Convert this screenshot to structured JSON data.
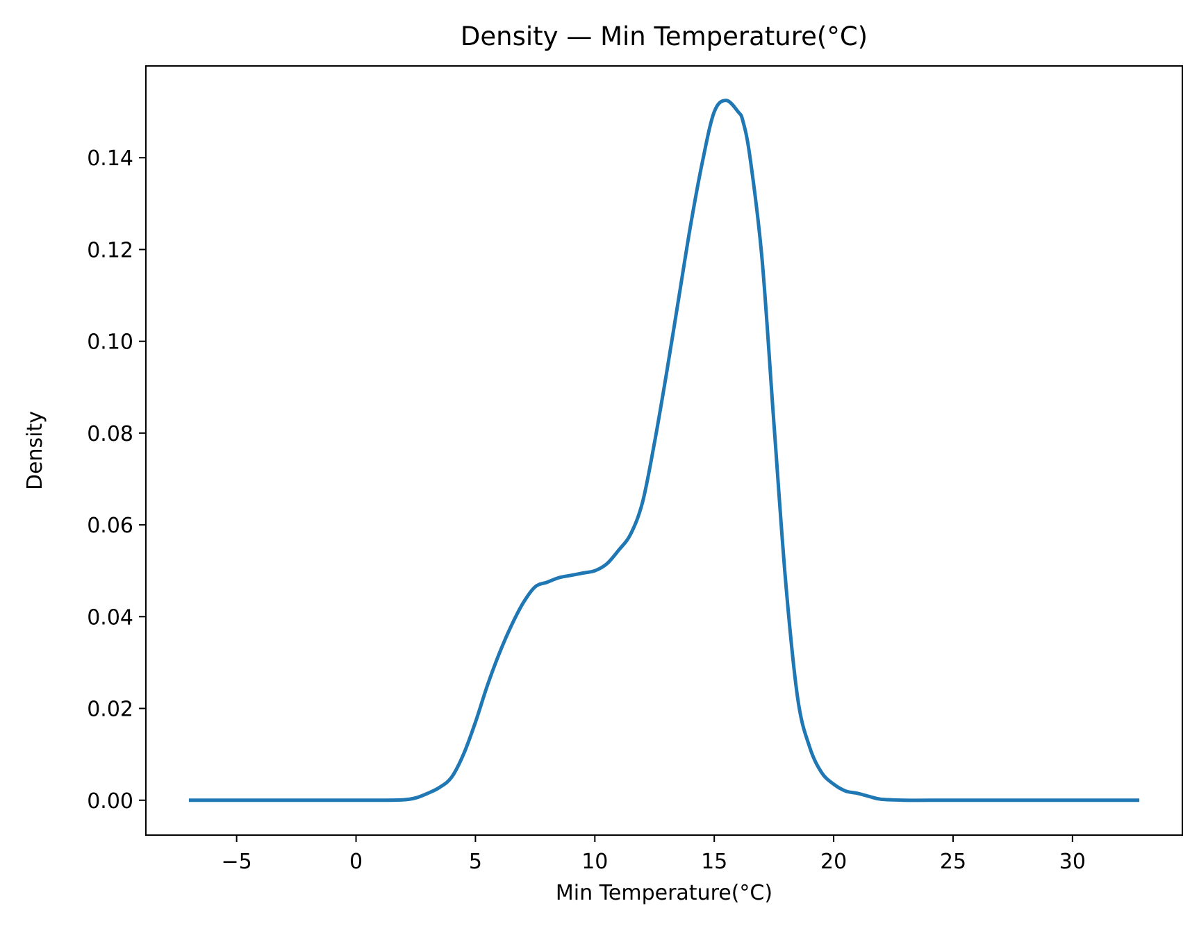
{
  "chart_data": {
    "type": "line",
    "title": "Density — Min Temperature(°C)",
    "xlabel": "Min Temperature(°C)",
    "ylabel": "Density",
    "xlim": [
      -8.8,
      34.6
    ],
    "ylim": [
      -0.0076,
      0.16
    ],
    "x_ticks": [
      -5,
      0,
      5,
      10,
      15,
      20,
      25,
      30
    ],
    "x_tick_labels": [
      "−5",
      "0",
      "5",
      "10",
      "15",
      "20",
      "25",
      "30"
    ],
    "y_ticks": [
      0.0,
      0.02,
      0.04,
      0.06,
      0.08,
      0.1,
      0.12,
      0.14
    ],
    "y_tick_labels": [
      "0.00",
      "0.02",
      "0.04",
      "0.06",
      "0.08",
      "0.10",
      "0.12",
      "0.14"
    ],
    "grid": false,
    "legend": "none",
    "series": [
      {
        "color": "#1f77b4",
        "x": [
          -7.0,
          -5,
          -2,
          0,
          1,
          2,
          2.5,
          3,
          3.5,
          4,
          4.5,
          5,
          5.5,
          6,
          6.5,
          7,
          7.5,
          8,
          8.5,
          9,
          9.5,
          10,
          10.5,
          11,
          11.5,
          12,
          12.5,
          13,
          13.5,
          14,
          14.5,
          15,
          15.5,
          16,
          16.2,
          16.5,
          17,
          17.5,
          18,
          18.5,
          19,
          19.5,
          20,
          20.5,
          21,
          21.5,
          22,
          23,
          24,
          26,
          28,
          30,
          32.8
        ],
        "y": [
          0.0,
          0.0,
          0.0,
          0.0,
          0.0,
          0.0001,
          0.0005,
          0.0015,
          0.0028,
          0.005,
          0.01,
          0.017,
          0.025,
          0.032,
          0.038,
          0.043,
          0.0465,
          0.0475,
          0.0485,
          0.049,
          0.0495,
          0.05,
          0.0515,
          0.0545,
          0.058,
          0.065,
          0.078,
          0.093,
          0.109,
          0.125,
          0.139,
          0.15,
          0.1525,
          0.15,
          0.148,
          0.14,
          0.118,
          0.082,
          0.047,
          0.022,
          0.0115,
          0.006,
          0.0035,
          0.002,
          0.0015,
          0.0008,
          0.0002,
          0.0,
          0.0,
          0.0,
          0.0,
          0.0,
          0.0
        ]
      }
    ]
  }
}
